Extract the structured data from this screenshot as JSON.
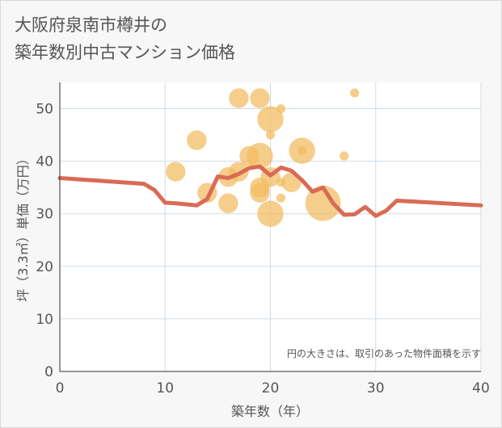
{
  "chart_data": {
    "type": "scatter",
    "title": [
      "大阪府泉南市樽井の",
      "築年数別中古マンション価格"
    ],
    "xlabel": "築年数（年）",
    "ylabel": "坪（3.3㎡）単価（万円）",
    "xlim": [
      0,
      40
    ],
    "ylim": [
      0,
      55
    ],
    "xticks": [
      0,
      10,
      20,
      30,
      40
    ],
    "yticks": [
      0,
      10,
      20,
      30,
      40,
      50
    ],
    "grid": true,
    "annotation": "円の大きさは、取引のあった物件面積を示す",
    "bubble_color": "#f3bb5e",
    "line_color": "#d96b55",
    "bubbles": [
      {
        "x": 11,
        "y": 38,
        "size": 3
      },
      {
        "x": 13,
        "y": 44,
        "size": 3
      },
      {
        "x": 14,
        "y": 34,
        "size": 3
      },
      {
        "x": 16,
        "y": 32,
        "size": 3
      },
      {
        "x": 16,
        "y": 37,
        "size": 3
      },
      {
        "x": 17,
        "y": 52,
        "size": 3
      },
      {
        "x": 17,
        "y": 38,
        "size": 3
      },
      {
        "x": 18,
        "y": 41,
        "size": 3
      },
      {
        "x": 19,
        "y": 52,
        "size": 3
      },
      {
        "x": 19,
        "y": 41,
        "size": 6
      },
      {
        "x": 19,
        "y": 35,
        "size": 3
      },
      {
        "x": 19,
        "y": 34,
        "size": 3
      },
      {
        "x": 20,
        "y": 48,
        "size": 6
      },
      {
        "x": 20,
        "y": 45,
        "size": 0.3
      },
      {
        "x": 20,
        "y": 37,
        "size": 3
      },
      {
        "x": 20,
        "y": 30,
        "size": 6
      },
      {
        "x": 21,
        "y": 50,
        "size": 0.3
      },
      {
        "x": 21,
        "y": 36,
        "size": 0.3
      },
      {
        "x": 21,
        "y": 33,
        "size": 0.3
      },
      {
        "x": 22,
        "y": 36,
        "size": 3
      },
      {
        "x": 23,
        "y": 42,
        "size": 6
      },
      {
        "x": 23,
        "y": 42,
        "size": 0.3
      },
      {
        "x": 25,
        "y": 32,
        "size": 12
      },
      {
        "x": 27,
        "y": 41,
        "size": 0.3
      },
      {
        "x": 28,
        "y": 53,
        "size": 0.3
      }
    ],
    "line": {
      "x": [
        0,
        8,
        9,
        10,
        11,
        12,
        13,
        14,
        15,
        16,
        17,
        18,
        19,
        20,
        21,
        22,
        23,
        24,
        25,
        26,
        27,
        28,
        29,
        30,
        31,
        32,
        40
      ],
      "y": [
        36.8,
        35.7,
        34.5,
        32.1,
        32.0,
        31.8,
        31.6,
        32.8,
        37.1,
        36.8,
        37.6,
        38.7,
        39.0,
        37.3,
        38.8,
        38.2,
        36.4,
        34.2,
        35.0,
        31.9,
        29.8,
        29.9,
        31.3,
        29.6,
        30.6,
        32.5,
        31.6
      ]
    }
  }
}
